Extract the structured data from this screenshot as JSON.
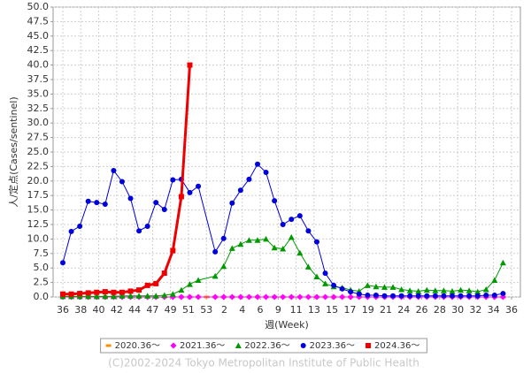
{
  "chart_data": {
    "type": "line",
    "xlabel": "週(Week)",
    "ylabel": "人/定点(Cases/sentinel)",
    "xlim": [
      -1.15,
      54.05
    ],
    "xticks": [
      {
        "value": 0,
        "label": "36"
      },
      {
        "value": 2.12,
        "label": "38"
      },
      {
        "value": 4.24,
        "label": "40"
      },
      {
        "value": 6.36,
        "label": "42"
      },
      {
        "value": 8.48,
        "label": "44"
      },
      {
        "value": 10.6,
        "label": "47"
      },
      {
        "value": 12.72,
        "label": "49"
      },
      {
        "value": 14.84,
        "label": "51"
      },
      {
        "value": 16.96,
        "label": "53"
      },
      {
        "value": 19.08,
        "label": "2"
      },
      {
        "value": 21.2,
        "label": "4"
      },
      {
        "value": 23.32,
        "label": "6"
      },
      {
        "value": 25.44,
        "label": "9"
      },
      {
        "value": 27.56,
        "label": "11"
      },
      {
        "value": 29.68,
        "label": "13"
      },
      {
        "value": 31.8,
        "label": "15"
      },
      {
        "value": 33.92,
        "label": "17"
      },
      {
        "value": 36.04,
        "label": "19"
      },
      {
        "value": 38.16,
        "label": "21"
      },
      {
        "value": 40.28,
        "label": "24"
      },
      {
        "value": 42.4,
        "label": "26"
      },
      {
        "value": 44.52,
        "label": "28"
      },
      {
        "value": 46.64,
        "label": "30"
      },
      {
        "value": 48.76,
        "label": "32"
      },
      {
        "value": 50.88,
        "label": "34"
      },
      {
        "value": 53,
        "label": "36"
      }
    ],
    "ylim": [
      0,
      50
    ],
    "yticks": [
      {
        "value": 0,
        "label": "0.0"
      },
      2.5,
      {
        "value": 5,
        "label": "5.0"
      },
      7.5,
      {
        "value": 10,
        "label": "10.0"
      },
      12.5,
      {
        "value": 15,
        "label": "15.0"
      },
      17.5,
      {
        "value": 20,
        "label": "20.0"
      },
      22.5,
      {
        "value": 25,
        "label": "25.0"
      },
      27.5,
      {
        "value": 30,
        "label": "30.0"
      },
      32.5,
      {
        "value": 35,
        "label": "35.0"
      },
      37.5,
      {
        "value": 40,
        "label": "40.0"
      },
      42.5,
      {
        "value": 45,
        "label": "45.0"
      },
      47.5,
      {
        "value": 50,
        "label": "50.0"
      }
    ],
    "grid": true,
    "legend": "bottom",
    "series": [
      {
        "name": "2020.36～",
        "color": "#ff8c00",
        "marker": "dash",
        "width": 1,
        "x": [
          0,
          1,
          2,
          3,
          4,
          5,
          6,
          7,
          8,
          9,
          10,
          11,
          12,
          13,
          14,
          15,
          16,
          17,
          18,
          19,
          20,
          21,
          22,
          23,
          24,
          25,
          26,
          27,
          28,
          29,
          30,
          31,
          32,
          33,
          34,
          35,
          36,
          37,
          38,
          39,
          40,
          41,
          42,
          43,
          44,
          45,
          46,
          47,
          48,
          49,
          50,
          51,
          52
        ],
        "values": [
          0,
          0,
          0,
          0,
          0,
          0,
          0,
          0,
          0,
          0,
          0,
          0,
          0,
          0,
          0,
          0,
          0,
          0,
          0,
          0,
          0,
          0,
          0,
          0,
          0,
          0,
          0,
          0,
          0,
          0,
          0,
          0,
          0,
          0,
          0,
          0,
          0,
          0,
          0,
          0,
          0,
          0,
          0,
          0,
          0,
          0,
          0,
          0,
          0,
          0,
          0,
          0,
          0
        ]
      },
      {
        "name": "2021.36～",
        "color": "#ff00ff",
        "marker": "diamond",
        "width": 1,
        "x": [
          0,
          1,
          2,
          3,
          4,
          5,
          6,
          7,
          8,
          9,
          10,
          11,
          12,
          13,
          14,
          15,
          16,
          18,
          19,
          20,
          21,
          22,
          23,
          24,
          25,
          26,
          27,
          28,
          29,
          30,
          31,
          32,
          33,
          34,
          35,
          36,
          37,
          38,
          39,
          40,
          41,
          42,
          43,
          44,
          45,
          46,
          47,
          48,
          49,
          50,
          51,
          52
        ],
        "values": [
          0,
          0,
          0,
          0,
          0,
          0,
          0,
          0,
          0,
          0,
          0,
          0,
          0,
          0,
          0,
          0,
          0,
          0,
          0,
          0,
          0,
          0,
          0,
          0,
          0,
          0,
          0,
          0,
          0,
          0,
          0,
          0,
          0,
          0,
          0,
          0,
          0,
          0,
          0,
          0,
          0,
          0,
          0,
          0,
          0,
          0,
          0,
          0,
          0,
          0,
          0,
          0
        ]
      },
      {
        "name": "2022.36～",
        "color": "#009900",
        "marker": "triangle",
        "width": 1,
        "x": [
          0,
          1,
          2,
          3,
          4,
          5,
          6,
          7,
          8,
          9,
          10,
          11,
          12,
          13,
          14,
          15,
          16,
          18,
          19,
          20,
          21,
          22,
          23,
          24,
          25,
          26,
          27,
          28,
          29,
          30,
          31,
          32,
          33,
          34,
          35,
          36,
          37,
          38,
          39,
          40,
          41,
          42,
          43,
          44,
          45,
          46,
          47,
          48,
          49,
          50,
          51,
          52
        ],
        "values": [
          0.1,
          0.1,
          0.1,
          0.1,
          0.1,
          0.1,
          0.1,
          0.2,
          0.2,
          0.2,
          0.2,
          0.2,
          0.3,
          0.5,
          1.2,
          2.2,
          2.9,
          3.6,
          5.3,
          8.4,
          9.1,
          9.8,
          9.8,
          10.0,
          8.5,
          8.3,
          10.3,
          7.6,
          5.2,
          3.5,
          2.3,
          1.8,
          1.6,
          1.2,
          1.0,
          2.0,
          1.8,
          1.7,
          1.7,
          1.3,
          1.1,
          1.0,
          1.2,
          1.1,
          1.1,
          1.0,
          1.2,
          1.1,
          0.9,
          1.3,
          2.9,
          5.9
        ]
      },
      {
        "name": "2023.36～",
        "color": "#0000dd",
        "marker": "circle",
        "width": 1,
        "x": [
          0,
          1,
          2,
          3,
          4,
          5,
          6,
          7,
          8,
          9,
          10,
          11,
          12,
          13,
          14,
          15,
          16,
          18,
          19,
          20,
          21,
          22,
          23,
          24,
          25,
          26,
          27,
          28,
          29,
          30,
          31,
          32,
          33,
          34,
          35,
          36,
          37,
          38,
          39,
          40,
          41,
          42,
          43,
          44,
          45,
          46,
          47,
          48,
          49,
          50,
          51,
          52
        ],
        "values": [
          5.9,
          11.3,
          12.2,
          16.5,
          16.3,
          16.0,
          21.8,
          19.9,
          17.0,
          11.4,
          12.2,
          16.3,
          15.1,
          20.2,
          20.3,
          18.0,
          19.1,
          7.8,
          10.1,
          16.2,
          18.4,
          20.3,
          22.9,
          21.5,
          16.6,
          12.5,
          13.4,
          14.0,
          11.4,
          9.5,
          4.1,
          2.0,
          1.4,
          0.9,
          0.5,
          0.3,
          0.3,
          0.2,
          0.2,
          0.2,
          0.2,
          0.2,
          0.2,
          0.2,
          0.2,
          0.2,
          0.2,
          0.2,
          0.2,
          0.3,
          0.3,
          0.6
        ]
      },
      {
        "name": "2024.36～",
        "color": "#ee0000",
        "marker": "square",
        "width": 3,
        "x": [
          0,
          1,
          2,
          3,
          4,
          5,
          6,
          7,
          8,
          9,
          10,
          11,
          12,
          13,
          14,
          15
        ],
        "values": [
          0.5,
          0.5,
          0.6,
          0.7,
          0.8,
          0.9,
          0.8,
          0.8,
          1.0,
          1.2,
          2.0,
          2.3,
          4.1,
          8.0,
          17.3,
          40.0
        ]
      }
    ]
  },
  "footer": "(C)2002-2024 Tokyo Metropolitan Institute of Public Health"
}
